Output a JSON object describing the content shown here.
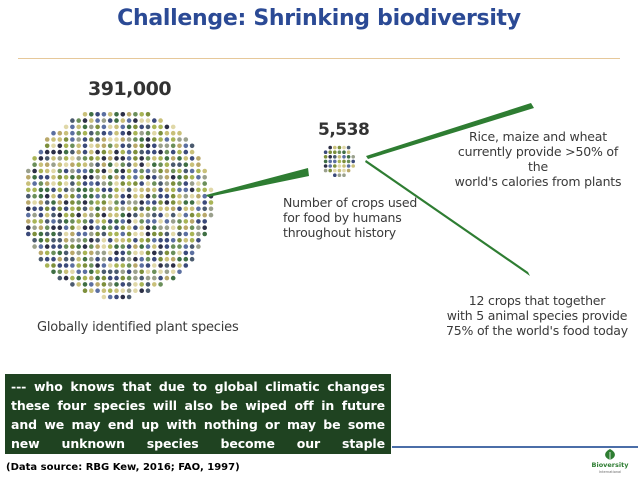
{
  "title": "Challenge: Shrinking biodiversity",
  "graphic": {
    "plant_species": {
      "count": "391,000",
      "label": "Globally identified plant species"
    },
    "food_crops": {
      "count": "5,538",
      "label_lines": [
        "Number of crops used",
        "for food by humans",
        "throughout history"
      ]
    },
    "staple_crops": {
      "label_lines": [
        "Rice, maize and wheat",
        "currently provide >50% of the",
        "world's calories from plants"
      ]
    },
    "twelve_crops": {
      "label_lines": [
        "12 crops that together",
        "with 5 animal species provide",
        "75% of the world's food today"
      ]
    }
  },
  "note": "--- who knows that due to global climatic changes these four species will also be wiped off in future and we may end up with nothing or may be some new unknown species become our staple foods!!!!!!!!!!",
  "source": "(Data source: RBG Kew, 2016; FAO, 1997)",
  "logo": {
    "name": "Bioversity",
    "tagline": "International"
  },
  "colors": {
    "title": "#2b4a95",
    "wedge_green": "#2e7d32",
    "note_box": "#1f4321",
    "dot_palette": [
      "#2c2f46",
      "#3b4a7a",
      "#5b6fa0",
      "#7d8f3c",
      "#a8b456",
      "#c9c07a",
      "#3f6f44",
      "#6b8f5a",
      "#9aa08c",
      "#4a5a6e",
      "#b9a86a",
      "#e0d8a8"
    ]
  }
}
